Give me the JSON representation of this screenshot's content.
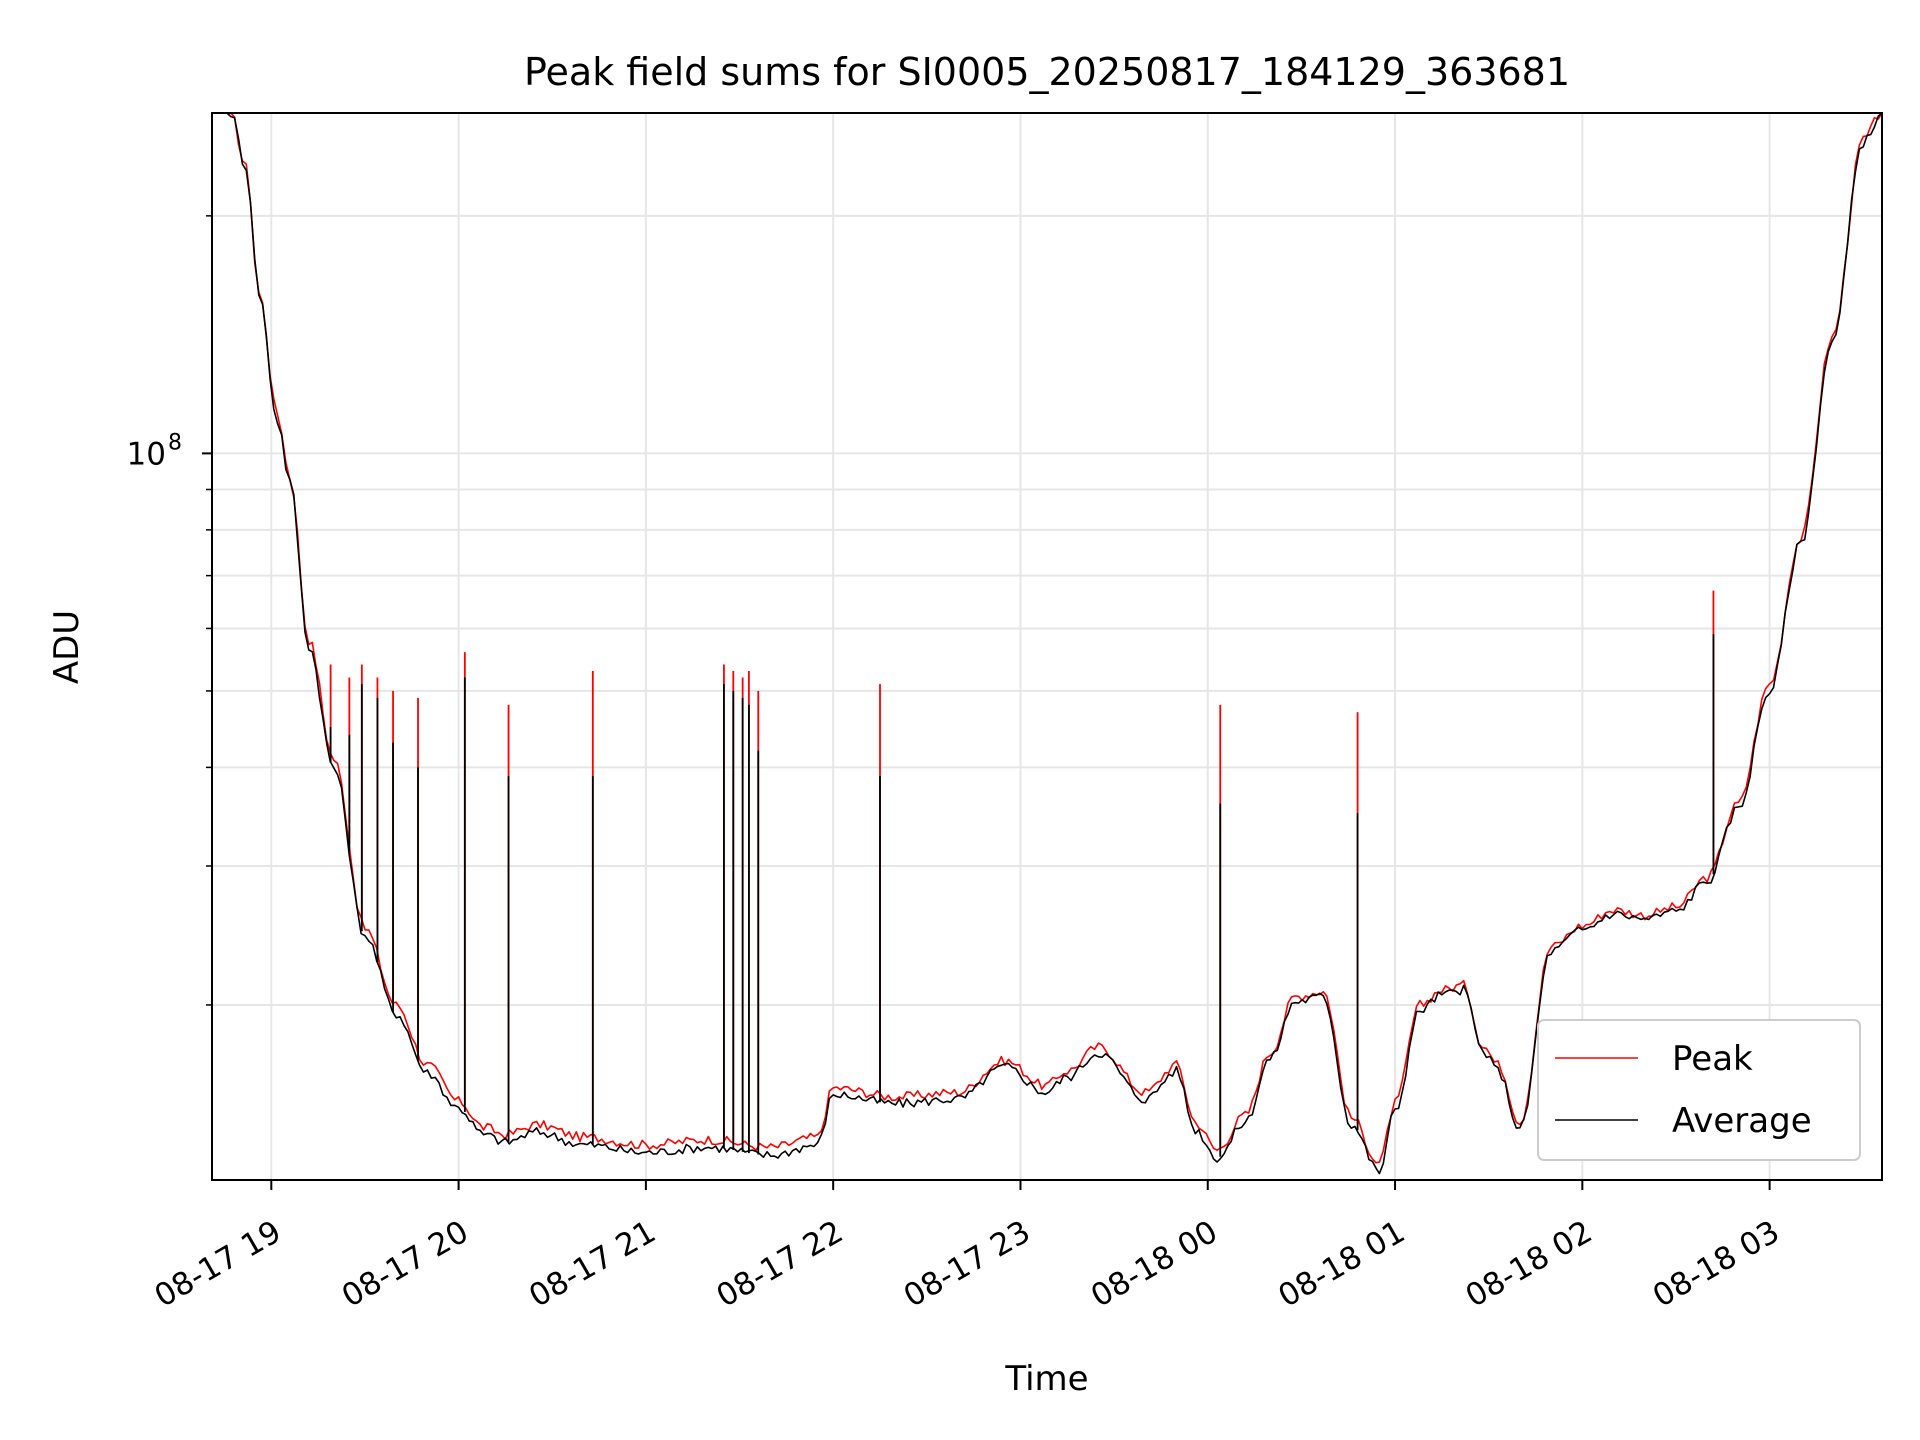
{
  "chart_data": {
    "type": "line",
    "title": "Peak field sums for SI0005_20250817_184129_363681",
    "xlabel": "Time",
    "ylabel": "ADU",
    "yscale": "log",
    "xlim": [
      "2025-08-17 18:41",
      "2025-08-18 03:36"
    ],
    "ylim": [
      12000000,
      270000000
    ],
    "grid": true,
    "legend": {
      "placement": "lower-right"
    },
    "x_ticks": [
      "08-17 19",
      "08-17 20",
      "08-17 21",
      "08-17 22",
      "08-17 23",
      "08-18 00",
      "08-18 01",
      "08-18 02",
      "08-18 03"
    ],
    "y_tick_major": {
      "base": "10",
      "exponent": "8"
    },
    "colors": {
      "peak": "#ff0000",
      "average": "#000000"
    },
    "x_times": [
      "18:41",
      "18:47",
      "18:52",
      "18:56",
      "19:02",
      "19:06",
      "19:12",
      "19:20",
      "19:30",
      "19:40",
      "19:50",
      "20:00",
      "20:08",
      "20:15",
      "20:25",
      "20:40",
      "21:00",
      "21:20",
      "21:40",
      "21:55",
      "22:00",
      "22:20",
      "22:40",
      "22:55",
      "23:08",
      "23:15",
      "23:25",
      "23:40",
      "23:50",
      "23:56",
      "00:03",
      "00:12",
      "00:20",
      "00:28",
      "00:37",
      "00:46",
      "00:55",
      "01:00",
      "01:08",
      "01:15",
      "01:22",
      "01:28",
      "01:33",
      "01:40",
      "01:50",
      "02:00",
      "02:10",
      "02:20",
      "02:30",
      "02:40",
      "02:50",
      "03:00",
      "03:10",
      "03:20",
      "03:30",
      "03:36"
    ],
    "series": [
      {
        "name": "Peak",
        "values": [
          270000000,
          270000000,
          230000000,
          160000000,
          112000000,
          93000000,
          58000000,
          41000000,
          25000000,
          20000000,
          16800000,
          15100000,
          14000000,
          13700000,
          14100000,
          13600000,
          13300000,
          13500000,
          13200000,
          13600000,
          15700000,
          15300000,
          15500000,
          17000000,
          15800000,
          16500000,
          17700000,
          15500000,
          16800000,
          14200000,
          13100000,
          14500000,
          17400000,
          20500000,
          20800000,
          14400000,
          12600000,
          15000000,
          20000000,
          20900000,
          21200000,
          17800000,
          16800000,
          14200000,
          23700000,
          25200000,
          26400000,
          26000000,
          26600000,
          29000000,
          36000000,
          51000000,
          78000000,
          140000000,
          250000000,
          270000000
        ],
        "spikes": [
          {
            "time": "19:19",
            "value": 54000000
          },
          {
            "time": "19:25",
            "value": 52000000
          },
          {
            "time": "19:29",
            "value": 54000000
          },
          {
            "time": "19:34",
            "value": 52000000
          },
          {
            "time": "19:39",
            "value": 50000000
          },
          {
            "time": "19:47",
            "value": 49000000
          },
          {
            "time": "20:02",
            "value": 56000000
          },
          {
            "time": "20:16",
            "value": 48000000
          },
          {
            "time": "20:43",
            "value": 53000000
          },
          {
            "time": "21:25",
            "value": 54000000
          },
          {
            "time": "21:28",
            "value": 53000000
          },
          {
            "time": "21:31",
            "value": 52000000
          },
          {
            "time": "21:33",
            "value": 53000000
          },
          {
            "time": "21:36",
            "value": 50000000
          },
          {
            "time": "22:15",
            "value": 51000000
          },
          {
            "time": "00:04",
            "value": 48000000
          },
          {
            "time": "00:48",
            "value": 47000000
          },
          {
            "time": "02:42",
            "value": 67000000
          }
        ]
      },
      {
        "name": "Average",
        "values": [
          270000000,
          270000000,
          230000000,
          160000000,
          110000000,
          92000000,
          57000000,
          40000000,
          24500000,
          19500000,
          16400000,
          14800000,
          13700000,
          13400000,
          13800000,
          13300000,
          13000000,
          13200000,
          12900000,
          13300000,
          15400000,
          15000000,
          15200000,
          16700000,
          15500000,
          16200000,
          17400000,
          15200000,
          16500000,
          13900000,
          12800000,
          14200000,
          17100000,
          20200000,
          20500000,
          14100000,
          12300000,
          14700000,
          19700000,
          20600000,
          20900000,
          17500000,
          16500000,
          13900000,
          23400000,
          24900000,
          26100000,
          25700000,
          26300000,
          28700000,
          35500000,
          50000000,
          77000000,
          138000000,
          248000000,
          270000000
        ],
        "spikes": [
          {
            "time": "19:19",
            "value": 45000000
          },
          {
            "time": "19:25",
            "value": 44000000
          },
          {
            "time": "19:29",
            "value": 51000000
          },
          {
            "time": "19:34",
            "value": 49000000
          },
          {
            "time": "19:39",
            "value": 43000000
          },
          {
            "time": "19:47",
            "value": 40000000
          },
          {
            "time": "20:02",
            "value": 52000000
          },
          {
            "time": "20:16",
            "value": 39000000
          },
          {
            "time": "20:43",
            "value": 39000000
          },
          {
            "time": "21:25",
            "value": 51000000
          },
          {
            "time": "21:28",
            "value": 50000000
          },
          {
            "time": "21:31",
            "value": 49000000
          },
          {
            "time": "21:33",
            "value": 48000000
          },
          {
            "time": "21:36",
            "value": 42000000
          },
          {
            "time": "22:15",
            "value": 39000000
          },
          {
            "time": "00:04",
            "value": 36000000
          },
          {
            "time": "00:48",
            "value": 35000000
          },
          {
            "time": "02:42",
            "value": 59000000
          }
        ]
      }
    ]
  }
}
